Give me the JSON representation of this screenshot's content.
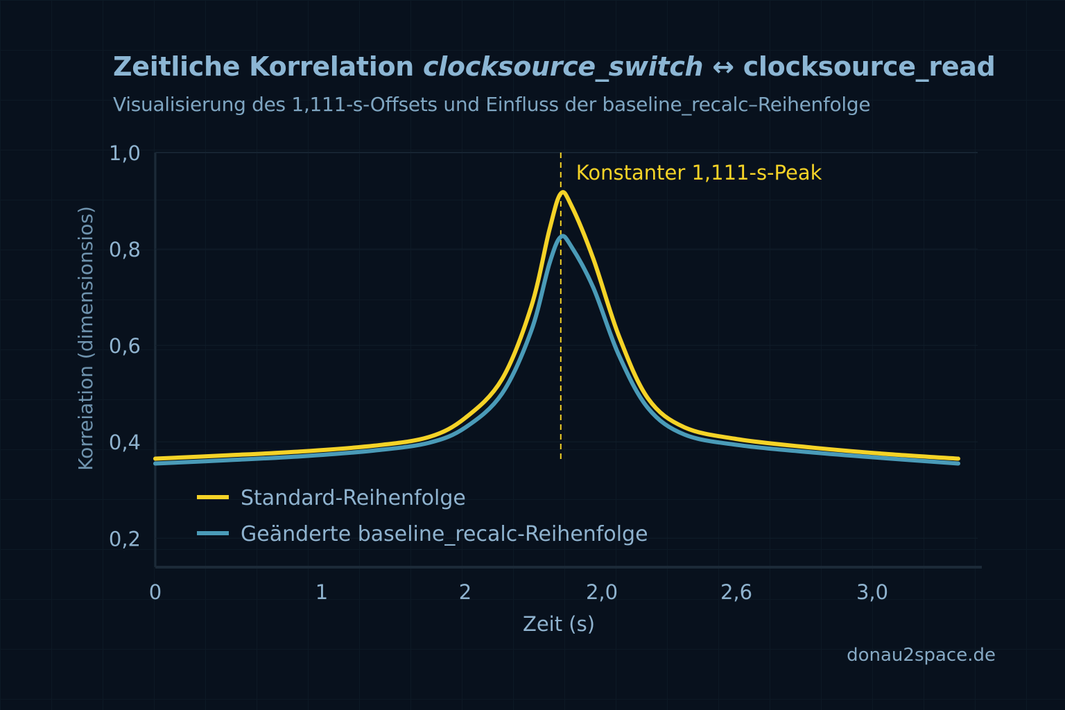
{
  "title": {
    "prefix": "Zeitliche Korrelation ",
    "italic": "clocksource_switch",
    "suffix": " ↔ clocksource_read"
  },
  "subtitle": "Visualisierung des 1,111-s-Offsets und Einfluss der baseline_recalc–Reihenfolge",
  "watermark": "donau2space.de",
  "chart_data": {
    "type": "line",
    "xlabel": "Zeit (s)",
    "ylabel": "Korreiation (dimensionsios)",
    "x_tick_labels": [
      "0",
      "1",
      "2",
      "2,0",
      "2,6",
      "3,0"
    ],
    "y_ticks": [
      1.0,
      0.8,
      0.6,
      0.4,
      0.2
    ],
    "y_tick_labels": [
      "1,0",
      "0,8",
      "0,6",
      "0,4",
      "0,2"
    ],
    "xlim": [
      0,
      2.2
    ],
    "ylim": [
      0.14,
      1.0
    ],
    "grid": true,
    "legend_placement": "bottom-left",
    "annotation": {
      "label": "Konstanter 1,111-s-Peak",
      "x": 1.111,
      "color": "#f5d327"
    },
    "series": [
      {
        "name": "Standard-Reihenfolge",
        "color": "#f5d327",
        "points": [
          [
            0,
            0.365
          ],
          [
            0.2,
            0.372
          ],
          [
            0.4,
            0.38
          ],
          [
            0.6,
            0.392
          ],
          [
            0.75,
            0.41
          ],
          [
            0.85,
            0.45
          ],
          [
            0.95,
            0.53
          ],
          [
            1.03,
            0.68
          ],
          [
            1.08,
            0.84
          ],
          [
            1.111,
            0.915
          ],
          [
            1.14,
            0.89
          ],
          [
            1.2,
            0.78
          ],
          [
            1.27,
            0.62
          ],
          [
            1.35,
            0.49
          ],
          [
            1.45,
            0.43
          ],
          [
            1.6,
            0.405
          ],
          [
            1.8,
            0.388
          ],
          [
            2.0,
            0.375
          ],
          [
            2.2,
            0.365
          ]
        ]
      },
      {
        "name": "Geänderte baseline_recalc-Reihenfolge",
        "color": "#4a9bb8",
        "points": [
          [
            0,
            0.355
          ],
          [
            0.2,
            0.362
          ],
          [
            0.4,
            0.37
          ],
          [
            0.6,
            0.382
          ],
          [
            0.75,
            0.398
          ],
          [
            0.85,
            0.43
          ],
          [
            0.95,
            0.5
          ],
          [
            1.03,
            0.63
          ],
          [
            1.08,
            0.77
          ],
          [
            1.111,
            0.825
          ],
          [
            1.14,
            0.805
          ],
          [
            1.2,
            0.72
          ],
          [
            1.27,
            0.58
          ],
          [
            1.35,
            0.47
          ],
          [
            1.45,
            0.415
          ],
          [
            1.6,
            0.393
          ],
          [
            1.8,
            0.378
          ],
          [
            2.0,
            0.366
          ],
          [
            2.2,
            0.355
          ]
        ]
      }
    ]
  }
}
